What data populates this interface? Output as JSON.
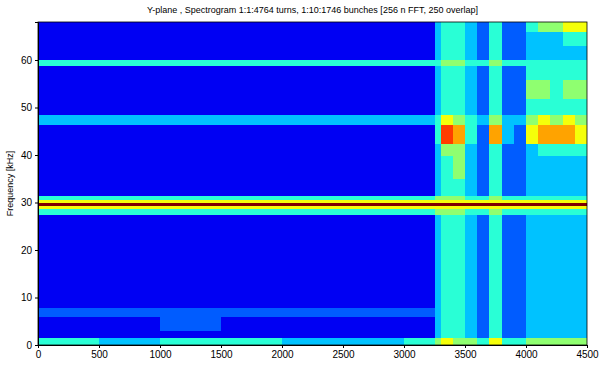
{
  "chart_data": {
    "type": "heatmap",
    "title": "Y-plane , Spectrogram 1:1:4764 turns, 1:10:1746 bunches [256 n FFT, 250 overlap]",
    "y_label": "Frequency [kHz]",
    "xlim": [
      0,
      4500
    ],
    "ylim": [
      0,
      68
    ],
    "xticks": [
      0,
      500,
      1000,
      1500,
      2000,
      2500,
      3000,
      3500,
      4000,
      4500
    ],
    "yticks": [
      0,
      10,
      20,
      30,
      40,
      50,
      60
    ],
    "x_bins": [
      0,
      500,
      1000,
      1500,
      2000,
      2500,
      3000,
      3250,
      3300,
      3400,
      3500,
      3600,
      3700,
      3800,
      3900,
      4000,
      4100,
      4200,
      4300,
      4400,
      4500
    ],
    "y_bins": [
      0,
      1.5,
      3,
      6,
      8,
      12,
      16,
      20,
      24,
      27.5,
      28.8,
      29.3,
      30.0,
      30.6,
      31.5,
      35,
      40,
      42.5,
      46.5,
      48.5,
      52,
      56,
      58.8,
      60.2,
      63,
      66,
      68
    ],
    "zlim": [
      0,
      10
    ],
    "z": [
      [
        4,
        3,
        4,
        4,
        3,
        3,
        4,
        5,
        6,
        5,
        5,
        4,
        6,
        4,
        4,
        5,
        5,
        5,
        5,
        5
      ],
      [
        1,
        1,
        1,
        1,
        1,
        1,
        1,
        3,
        4,
        4,
        3,
        2,
        4,
        2,
        2,
        3,
        3,
        3,
        3,
        3
      ],
      [
        1,
        1,
        2,
        1,
        1,
        1,
        1,
        3,
        4,
        4,
        3,
        2,
        4,
        2,
        2,
        3,
        3,
        3,
        3,
        3
      ],
      [
        2,
        2,
        2,
        2,
        2,
        2,
        2,
        3,
        4,
        4,
        3,
        2,
        4,
        2,
        2,
        3,
        3,
        3,
        3,
        3
      ],
      [
        1,
        1,
        1,
        1,
        1,
        1,
        1,
        3,
        4,
        4,
        3,
        2,
        4,
        2,
        2,
        3,
        3,
        3,
        3,
        3
      ],
      [
        1,
        1,
        1,
        1,
        1,
        1,
        1,
        3,
        4,
        4,
        3,
        2,
        4,
        2,
        2,
        3,
        3,
        3,
        3,
        3
      ],
      [
        1,
        1,
        1,
        1,
        1,
        1,
        1,
        3,
        4,
        4,
        3,
        2,
        4,
        2,
        2,
        3,
        3,
        3,
        3,
        3
      ],
      [
        1,
        1,
        1,
        1,
        1,
        1,
        1,
        3,
        4,
        4,
        3,
        2,
        4,
        2,
        2,
        3,
        3,
        3,
        3,
        3
      ],
      [
        1,
        1,
        1,
        1,
        1,
        1,
        1,
        3,
        4,
        4,
        3,
        2,
        4,
        2,
        2,
        3,
        3,
        3,
        3,
        3
      ],
      [
        4,
        4,
        4,
        4,
        4,
        4,
        4,
        5,
        5,
        5,
        4,
        4,
        5,
        4,
        4,
        4,
        4,
        4,
        4,
        4
      ],
      [
        6,
        6,
        6,
        6,
        6,
        6,
        6,
        6,
        6,
        6,
        6,
        6,
        6,
        6,
        6,
        6,
        6,
        6,
        6,
        6
      ],
      [
        10,
        10,
        10,
        10,
        10,
        10,
        10,
        10,
        10,
        10,
        10,
        10,
        10,
        10,
        10,
        10,
        10,
        10,
        10,
        10
      ],
      [
        6,
        6,
        6,
        6,
        6,
        6,
        6,
        6,
        6,
        6,
        6,
        6,
        6,
        6,
        6,
        6,
        6,
        6,
        6,
        6
      ],
      [
        4,
        4,
        4,
        4,
        4,
        4,
        4,
        5,
        5,
        5,
        4,
        4,
        5,
        4,
        4,
        4,
        4,
        4,
        4,
        4
      ],
      [
        1,
        1,
        1,
        1,
        1,
        1,
        1,
        3,
        4,
        4,
        3,
        2,
        4,
        2,
        2,
        3,
        3,
        3,
        3,
        3
      ],
      [
        1,
        1,
        1,
        1,
        1,
        1,
        1,
        3,
        4,
        5,
        3,
        2,
        4,
        2,
        2,
        3,
        3,
        3,
        3,
        3
      ],
      [
        1,
        1,
        1,
        1,
        1,
        1,
        1,
        3,
        5,
        5,
        3,
        2,
        4,
        2,
        2,
        3,
        4,
        4,
        4,
        4
      ],
      [
        1,
        1,
        1,
        1,
        1,
        1,
        1,
        4,
        8,
        7,
        4,
        2,
        7,
        3,
        2,
        6,
        7,
        7,
        7,
        6
      ],
      [
        3,
        3,
        3,
        3,
        3,
        3,
        3,
        4,
        6,
        5,
        4,
        3,
        5,
        3,
        3,
        5,
        6,
        5,
        6,
        5
      ],
      [
        1,
        1,
        1,
        1,
        1,
        1,
        1,
        3,
        4,
        4,
        3,
        2,
        4,
        2,
        2,
        4,
        4,
        4,
        4,
        4
      ],
      [
        1,
        1,
        1,
        1,
        1,
        1,
        1,
        3,
        4,
        4,
        3,
        2,
        4,
        2,
        2,
        5,
        5,
        4,
        5,
        5
      ],
      [
        1,
        1,
        1,
        1,
        1,
        1,
        1,
        3,
        4,
        4,
        3,
        2,
        4,
        2,
        2,
        4,
        4,
        4,
        4,
        4
      ],
      [
        4,
        4,
        4,
        4,
        4,
        4,
        4,
        4,
        5,
        5,
        4,
        4,
        5,
        4,
        4,
        4,
        4,
        4,
        4,
        4
      ],
      [
        1,
        1,
        1,
        1,
        1,
        1,
        1,
        3,
        4,
        4,
        3,
        2,
        4,
        2,
        2,
        3,
        3,
        3,
        3,
        3
      ],
      [
        1,
        1,
        1,
        1,
        1,
        1,
        1,
        3,
        4,
        4,
        3,
        2,
        4,
        2,
        2,
        3,
        3,
        3,
        4,
        4
      ],
      [
        1,
        1,
        1,
        1,
        1,
        1,
        1,
        3,
        4,
        4,
        3,
        2,
        4,
        2,
        2,
        4,
        5,
        5,
        6,
        6
      ]
    ]
  }
}
